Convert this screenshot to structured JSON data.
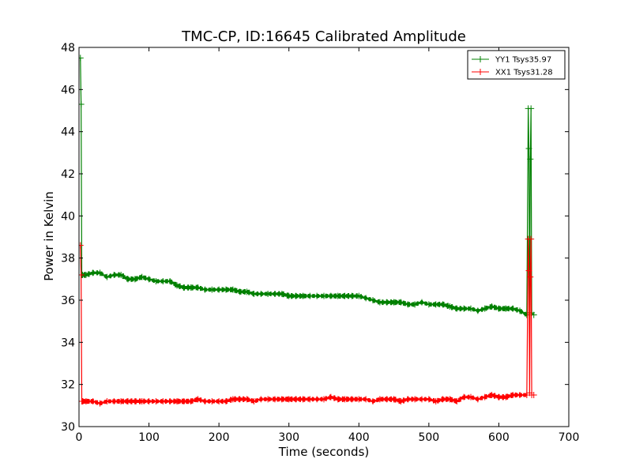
{
  "chart_data": {
    "type": "line",
    "title": "TMC-CP, ID:16645 Calibrated Amplitude",
    "xlabel": "Time (seconds)",
    "ylabel": "Power in Kelvin",
    "xlim": [
      0,
      700
    ],
    "ylim": [
      30,
      48
    ],
    "xticks": [
      0,
      100,
      200,
      300,
      400,
      500,
      600,
      700
    ],
    "yticks": [
      30,
      32,
      34,
      36,
      38,
      40,
      42,
      44,
      46,
      48
    ],
    "grid": false,
    "legend_position": "top-right",
    "series": [
      {
        "name": "YY1 Tsys35.97",
        "color": "#008000",
        "points": [
          [
            2,
            47.5
          ],
          [
            3,
            45.3
          ],
          [
            4,
            37.2
          ],
          [
            5,
            37.2
          ],
          [
            10,
            37.2
          ],
          [
            20,
            37.3
          ],
          [
            30,
            37.3
          ],
          [
            40,
            37.1
          ],
          [
            50,
            37.2
          ],
          [
            60,
            37.2
          ],
          [
            70,
            37.0
          ],
          [
            80,
            37.0
          ],
          [
            90,
            37.1
          ],
          [
            100,
            37.0
          ],
          [
            110,
            36.9
          ],
          [
            120,
            36.9
          ],
          [
            130,
            36.9
          ],
          [
            140,
            36.7
          ],
          [
            150,
            36.6
          ],
          [
            160,
            36.6
          ],
          [
            170,
            36.6
          ],
          [
            180,
            36.5
          ],
          [
            190,
            36.5
          ],
          [
            200,
            36.5
          ],
          [
            210,
            36.5
          ],
          [
            220,
            36.5
          ],
          [
            230,
            36.4
          ],
          [
            240,
            36.4
          ],
          [
            250,
            36.3
          ],
          [
            260,
            36.3
          ],
          [
            270,
            36.3
          ],
          [
            280,
            36.3
          ],
          [
            290,
            36.3
          ],
          [
            300,
            36.2
          ],
          [
            310,
            36.2
          ],
          [
            320,
            36.2
          ],
          [
            330,
            36.2
          ],
          [
            340,
            36.2
          ],
          [
            350,
            36.2
          ],
          [
            360,
            36.2
          ],
          [
            370,
            36.2
          ],
          [
            380,
            36.2
          ],
          [
            390,
            36.2
          ],
          [
            400,
            36.2
          ],
          [
            410,
            36.1
          ],
          [
            420,
            36.0
          ],
          [
            430,
            35.9
          ],
          [
            440,
            35.9
          ],
          [
            450,
            35.9
          ],
          [
            460,
            35.9
          ],
          [
            470,
            35.8
          ],
          [
            480,
            35.8
          ],
          [
            490,
            35.9
          ],
          [
            500,
            35.8
          ],
          [
            510,
            35.8
          ],
          [
            520,
            35.8
          ],
          [
            530,
            35.7
          ],
          [
            540,
            35.6
          ],
          [
            550,
            35.6
          ],
          [
            560,
            35.6
          ],
          [
            570,
            35.5
          ],
          [
            580,
            35.6
          ],
          [
            590,
            35.7
          ],
          [
            600,
            35.6
          ],
          [
            610,
            35.6
          ],
          [
            620,
            35.6
          ],
          [
            630,
            35.5
          ],
          [
            640,
            35.3
          ],
          [
            642,
            45.1
          ],
          [
            643,
            43.2
          ],
          [
            644,
            35.4
          ],
          [
            645,
            42.7
          ],
          [
            646,
            45.1
          ],
          [
            647,
            35.4
          ],
          [
            650,
            35.3
          ]
        ]
      },
      {
        "name": "XX1 Tsys31.28",
        "color": "#ff0000",
        "points": [
          [
            2,
            38.6
          ],
          [
            3,
            37.2
          ],
          [
            4,
            31.2
          ],
          [
            5,
            31.2
          ],
          [
            10,
            31.2
          ],
          [
            20,
            31.2
          ],
          [
            30,
            31.1
          ],
          [
            40,
            31.2
          ],
          [
            50,
            31.2
          ],
          [
            60,
            31.2
          ],
          [
            70,
            31.2
          ],
          [
            80,
            31.2
          ],
          [
            90,
            31.2
          ],
          [
            100,
            31.2
          ],
          [
            110,
            31.2
          ],
          [
            120,
            31.2
          ],
          [
            130,
            31.2
          ],
          [
            140,
            31.2
          ],
          [
            150,
            31.2
          ],
          [
            160,
            31.2
          ],
          [
            170,
            31.3
          ],
          [
            180,
            31.2
          ],
          [
            190,
            31.2
          ],
          [
            200,
            31.2
          ],
          [
            210,
            31.2
          ],
          [
            220,
            31.3
          ],
          [
            230,
            31.3
          ],
          [
            240,
            31.3
          ],
          [
            250,
            31.2
          ],
          [
            260,
            31.3
          ],
          [
            270,
            31.3
          ],
          [
            280,
            31.3
          ],
          [
            290,
            31.3
          ],
          [
            300,
            31.3
          ],
          [
            310,
            31.3
          ],
          [
            320,
            31.3
          ],
          [
            330,
            31.3
          ],
          [
            340,
            31.3
          ],
          [
            350,
            31.3
          ],
          [
            360,
            31.4
          ],
          [
            370,
            31.3
          ],
          [
            380,
            31.3
          ],
          [
            390,
            31.3
          ],
          [
            400,
            31.3
          ],
          [
            410,
            31.3
          ],
          [
            420,
            31.2
          ],
          [
            430,
            31.3
          ],
          [
            440,
            31.3
          ],
          [
            450,
            31.3
          ],
          [
            460,
            31.2
          ],
          [
            470,
            31.3
          ],
          [
            480,
            31.3
          ],
          [
            490,
            31.3
          ],
          [
            500,
            31.3
          ],
          [
            510,
            31.2
          ],
          [
            520,
            31.3
          ],
          [
            530,
            31.3
          ],
          [
            540,
            31.2
          ],
          [
            550,
            31.4
          ],
          [
            560,
            31.4
          ],
          [
            570,
            31.3
          ],
          [
            580,
            31.4
          ],
          [
            590,
            31.5
          ],
          [
            600,
            31.4
          ],
          [
            610,
            31.4
          ],
          [
            620,
            31.5
          ],
          [
            630,
            31.5
          ],
          [
            640,
            31.5
          ],
          [
            642,
            38.9
          ],
          [
            643,
            37.4
          ],
          [
            644,
            31.6
          ],
          [
            645,
            37.1
          ],
          [
            646,
            38.9
          ],
          [
            647,
            31.5
          ],
          [
            650,
            31.5
          ]
        ]
      }
    ]
  }
}
